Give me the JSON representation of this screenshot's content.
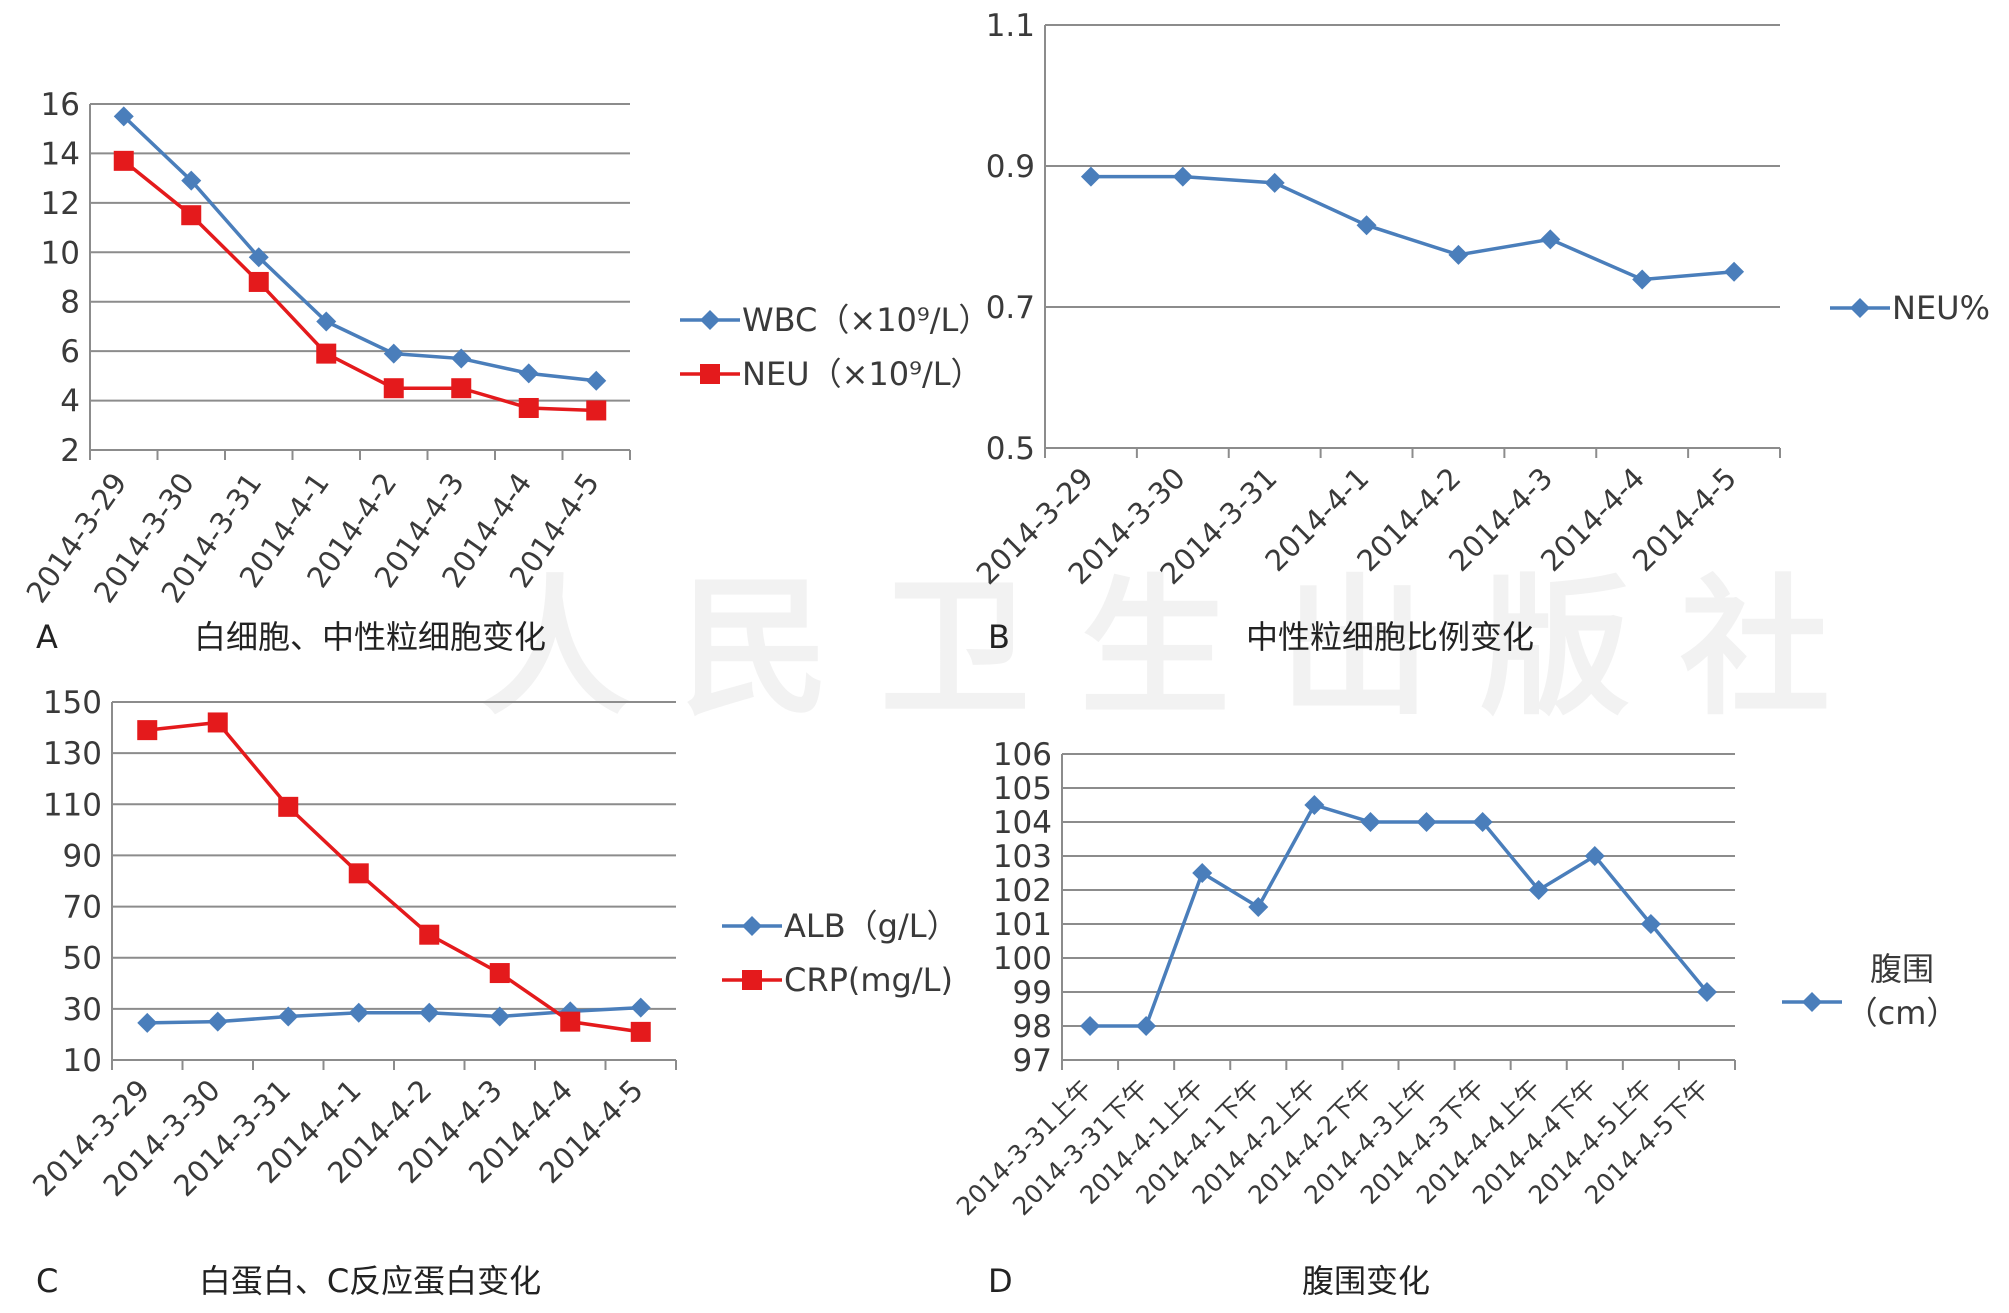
{
  "watermark": "人民卫生出版社",
  "chart_data": [
    {
      "id": "A",
      "type": "line",
      "panel_letter": "A",
      "caption": "白细胞、中性粒细胞变化",
      "categories": [
        "2014-3-29",
        "2014-3-30",
        "2014-3-31",
        "2014-4-1",
        "2014-4-2",
        "2014-4-3",
        "2014-4-4",
        "2014-4-5"
      ],
      "ylim": [
        2,
        16
      ],
      "yticks": [
        2,
        4,
        6,
        8,
        10,
        12,
        14,
        16
      ],
      "grid": true,
      "legend_position": "right",
      "series": [
        {
          "name": "WBC",
          "legend_label": "WBC（×10⁹/L）",
          "color": "#4a7ebb",
          "marker": "diamond",
          "values": [
            15.5,
            12.9,
            9.8,
            7.2,
            5.9,
            5.7,
            5.1,
            4.8
          ]
        },
        {
          "name": "NEU",
          "legend_label": "NEU（×10⁹/L）",
          "color": "#e41a1c",
          "marker": "square",
          "values": [
            13.7,
            11.5,
            8.8,
            5.9,
            4.5,
            4.5,
            3.7,
            3.6
          ]
        }
      ]
    },
    {
      "id": "B",
      "type": "line",
      "panel_letter": "B",
      "caption": "中性粒细胞比例变化",
      "categories": [
        "2014-3-29",
        "2014-3-30",
        "2014-3-31",
        "2014-4-1",
        "2014-4-2",
        "2014-4-3",
        "2014-4-4",
        "2014-4-5"
      ],
      "ylim": [
        0.5,
        1.1
      ],
      "yticks": [
        "0.5",
        "0.7",
        "0.9",
        "1.1"
      ],
      "grid": true,
      "legend_position": "right",
      "series": [
        {
          "name": "NEU%",
          "legend_label": "NEU%",
          "color": "#4a7ebb",
          "marker": "diamond",
          "values": [
            0.885,
            0.885,
            0.876,
            0.816,
            0.774,
            0.796,
            0.739,
            0.75
          ]
        }
      ]
    },
    {
      "id": "C",
      "type": "line",
      "panel_letter": "C",
      "caption": "白蛋白、C反应蛋白变化",
      "categories": [
        "2014-3-29",
        "2014-3-30",
        "2014-3-31",
        "2014-4-1",
        "2014-4-2",
        "2014-4-3",
        "2014-4-4",
        "2014-4-5"
      ],
      "ylim": [
        10,
        150
      ],
      "yticks": [
        10,
        30,
        50,
        70,
        90,
        110,
        130,
        150
      ],
      "grid": true,
      "legend_position": "right",
      "series": [
        {
          "name": "ALB",
          "legend_label": "ALB（g/L）",
          "color": "#4a7ebb",
          "marker": "diamond",
          "values": [
            24.5,
            25,
            27,
            28.5,
            28.5,
            27,
            29,
            30.5
          ]
        },
        {
          "name": "CRP",
          "legend_label": "CRP(mg/L)",
          "color": "#e41a1c",
          "marker": "square",
          "values": [
            139,
            142,
            109,
            83,
            59,
            44,
            25,
            21
          ]
        }
      ]
    },
    {
      "id": "D",
      "type": "line",
      "panel_letter": "D",
      "caption": "腹围变化",
      "categories": [
        "2014-3-31上午",
        "2014-3-31下午",
        "2014-4-1上午",
        "2014-4-1下午",
        "2014-4-2上午",
        "2014-4-2下午",
        "2014-4-3上午",
        "2014-4-3下午",
        "2014-4-4上午",
        "2014-4-4下午",
        "2014-4-5上午",
        "2014-4-5下午"
      ],
      "ylim": [
        97,
        106
      ],
      "yticks": [
        97,
        98,
        99,
        100,
        101,
        102,
        103,
        104,
        105,
        106
      ],
      "grid": true,
      "legend_position": "right",
      "series": [
        {
          "name": "腹围",
          "legend_label": "腹围",
          "legend_label_line2": "（cm）",
          "color": "#4a7ebb",
          "marker": "diamond",
          "values": [
            98,
            98,
            102.5,
            101.5,
            104.5,
            104,
            104,
            104,
            102,
            103,
            101,
            99
          ]
        }
      ]
    }
  ]
}
